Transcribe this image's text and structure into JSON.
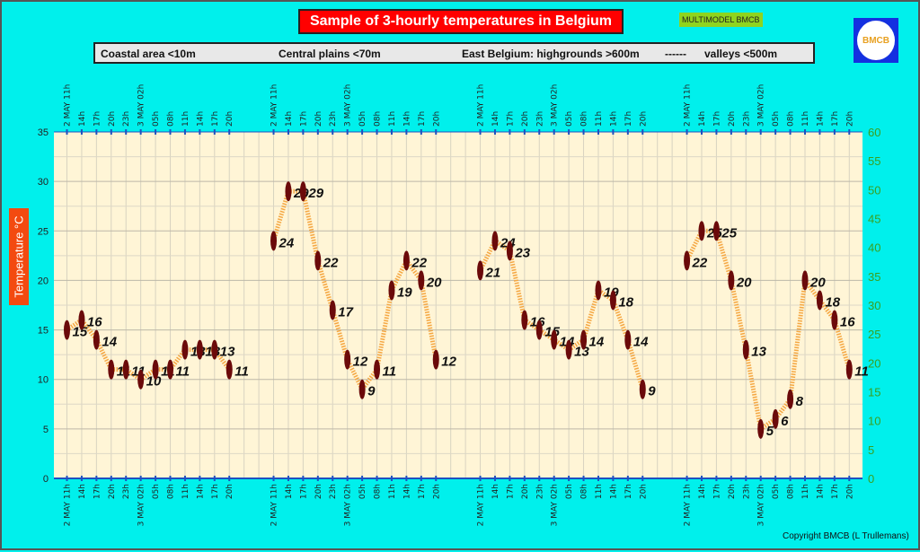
{
  "header": {
    "title": "Sample of 3-hourly temperatures in Belgium",
    "badge": "MULTIMODEL BMCB",
    "logo_text": "BMCB",
    "copyright": "Copyright BMCB (L Trullemans)"
  },
  "legend": [
    "Coastal area <10m",
    "Central plains <70m",
    "East Belgium: highgrounds >600m",
    "------",
    "valleys <500m"
  ],
  "colors": {
    "background": "#00f0ec",
    "plot": "#fff5d6",
    "line": "#f5a742",
    "marker": "#6b0a0a",
    "right_axis": "#3aa020",
    "title_bg": "#ff0000"
  },
  "chart_data": {
    "type": "line",
    "title": "Sample of 3-hourly temperatures in Belgium",
    "ylabel": "Temperature   °C",
    "ylim": [
      0,
      35
    ],
    "yticks": [
      0,
      5,
      10,
      15,
      20,
      25,
      30,
      35
    ],
    "y2lim": [
      0,
      60
    ],
    "y2ticks": [
      0,
      5,
      10,
      15,
      20,
      25,
      30,
      35,
      40,
      45,
      50,
      55,
      60
    ],
    "grid": true,
    "categories": [
      "2 MAY 11h",
      "14h",
      "17h",
      "20h",
      "23h",
      "3 MAY 02h",
      "05h",
      "08h",
      "11h",
      "14h",
      "17h",
      "20h"
    ],
    "series": [
      {
        "name": "Coastal area <10m",
        "values": [
          15,
          16,
          14,
          11,
          11,
          10,
          11,
          11,
          13,
          13,
          13,
          11
        ]
      },
      {
        "name": "Central plains <70m",
        "values": [
          24,
          29,
          29,
          22,
          17,
          12,
          9,
          11,
          19,
          22,
          20,
          12
        ]
      },
      {
        "name": "East Belgium: highgrounds >600m",
        "values": [
          21,
          24,
          23,
          16,
          15,
          14,
          13,
          14,
          19,
          18,
          14,
          9
        ]
      },
      {
        "name": "valleys <500m",
        "values": [
          22,
          25,
          25,
          20,
          13,
          5,
          6,
          8,
          20,
          18,
          16,
          11
        ]
      }
    ]
  }
}
